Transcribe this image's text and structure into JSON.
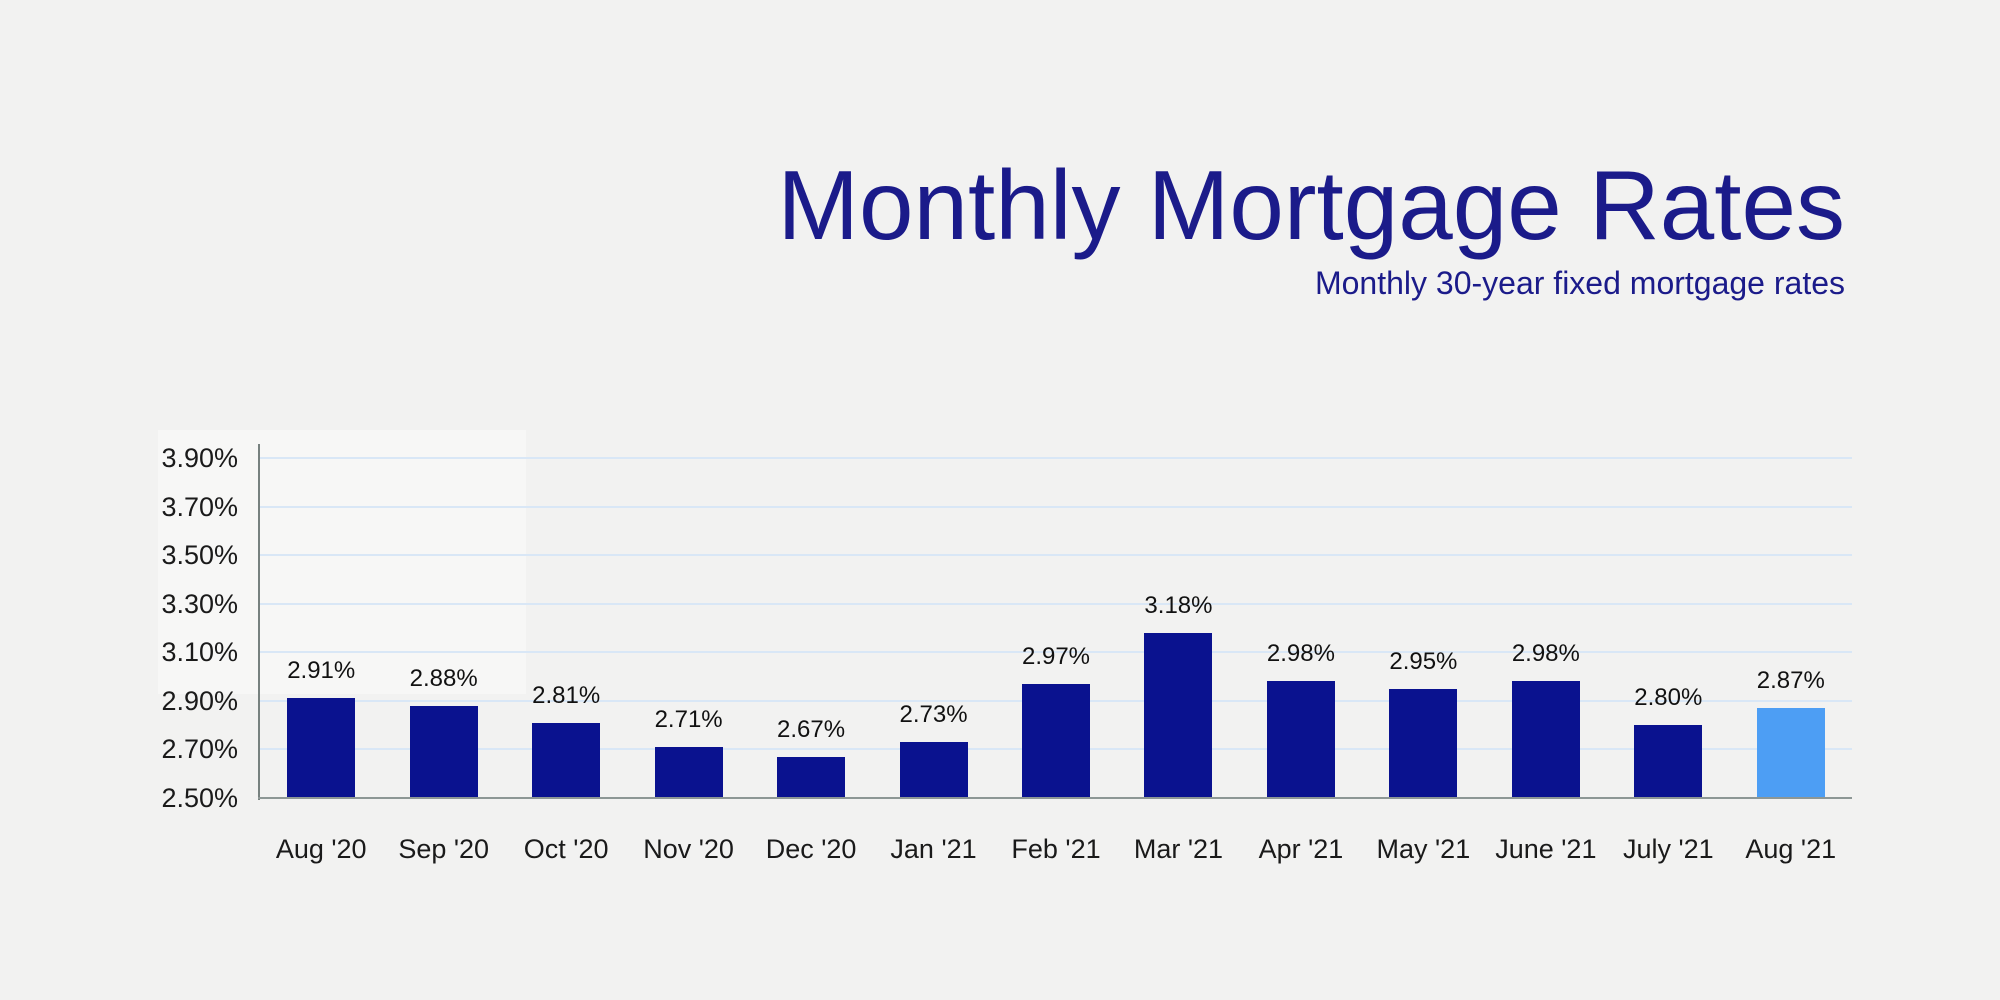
{
  "page": {
    "background_color": "#f2f2f1"
  },
  "header": {
    "title": "Monthly Mortgage Rates",
    "subtitle": "Monthly 30-year fixed mortgage rates",
    "title_color": "#1b1b8a",
    "subtitle_color": "#1b1b8a"
  },
  "chart_data": {
    "type": "bar",
    "title": "Monthly Mortgage Rates",
    "subtitle": "Monthly 30-year fixed mortgage rates",
    "categories": [
      "Aug '20",
      "Sep '20",
      "Oct '20",
      "Nov '20",
      "Dec '20",
      "Jan '21",
      "Feb '21",
      "Mar '21",
      "Apr '21",
      "May '21",
      "June '21",
      "July '21",
      "Aug '21"
    ],
    "values": [
      2.91,
      2.88,
      2.81,
      2.71,
      2.67,
      2.73,
      2.97,
      3.18,
      2.98,
      2.95,
      2.98,
      2.8,
      2.87
    ],
    "value_labels": [
      "2.91%",
      "2.88%",
      "2.81%",
      "2.71%",
      "2.67%",
      "2.73%",
      "2.97%",
      "3.18%",
      "2.98%",
      "2.95%",
      "2.98%",
      "2.80%",
      "2.87%"
    ],
    "xlabel": "",
    "ylabel": "",
    "ylim": [
      2.5,
      3.9
    ],
    "y_tick_values": [
      2.5,
      2.7,
      2.9,
      3.1,
      3.3,
      3.5,
      3.7,
      3.9
    ],
    "y_tick_labels": [
      "2.50%",
      "2.70%",
      "2.90%",
      "3.10%",
      "3.30%",
      "3.50%",
      "3.70%",
      "3.90%"
    ],
    "grid": true,
    "legend_position": "none",
    "bar_color": "#0a128f",
    "highlight_index": 12,
    "highlight_color": "#4d9ef4",
    "gridline_color": "#d9e7f6",
    "y_axis_line_color": "#77817f",
    "x_axis_line_color": "#8d9795"
  }
}
